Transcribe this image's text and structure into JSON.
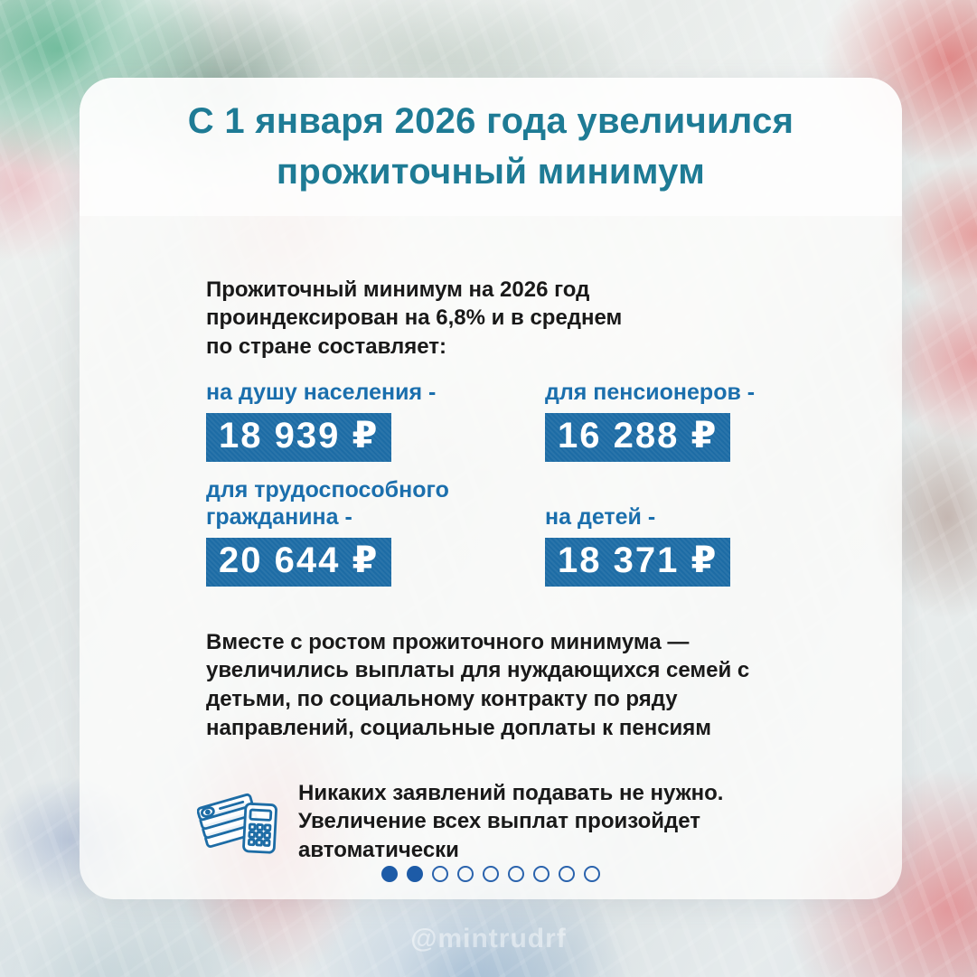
{
  "header": {
    "title_line1": "С 1 января 2026 года увеличился",
    "title_line2": "прожиточный минимум"
  },
  "intro": "Прожиточный минимум на 2026 год проиндексирован на 6,8% и в среднем по стране составляет:",
  "values": [
    {
      "label": "на душу населения -",
      "amount": "18 939 ₽"
    },
    {
      "label": "для пенсионеров -",
      "amount": "16 288 ₽"
    },
    {
      "label": "для трудоспособного гражданина -",
      "amount": "20 644 ₽"
    },
    {
      "label": "на детей -",
      "amount": "18 371 ₽"
    }
  ],
  "paragraph": "Вместе с ростом прожиточного минимума — увеличились выплаты для нуждающихся семей с детьми, по социальному контракту по ряду направлений, социальные доплаты к пенсиям",
  "note": {
    "icon": "banknotes-calculator-icon",
    "text": "Никаких заявлений подавать не нужно. Увеличение всех выплат произойдет автоматически"
  },
  "pagination": {
    "total": 9,
    "active_count": 2
  },
  "watermark": "@mintrudrf",
  "colors": {
    "accent_teal": "#1e7b95",
    "accent_blue": "#1b6fad",
    "badge_bg": "#1d6ca5",
    "dot_blue": "#1d5ba7",
    "text": "#191919"
  }
}
